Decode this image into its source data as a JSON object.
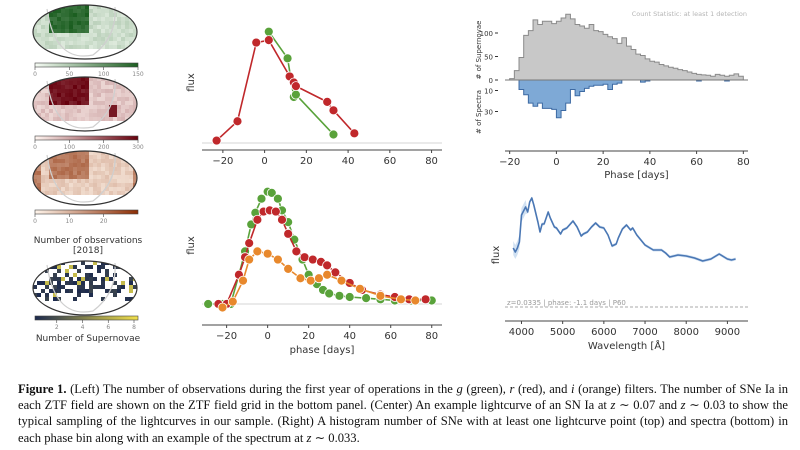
{
  "left_panel": {
    "maps": [
      {
        "name": "g-band",
        "color_min": "#f7fcf5",
        "color_max": "#1b5e20",
        "colorbar_ticks": [
          "0",
          "50",
          "100",
          "150"
        ]
      },
      {
        "name": "r-band",
        "color_min": "#fff5f0",
        "color_max": "#67000d",
        "colorbar_ticks": [
          "0",
          "100",
          "200",
          "300"
        ]
      },
      {
        "name": "i-band",
        "color_min": "#fff5eb",
        "color_max": "#8c2d04",
        "colorbar_ticks": [
          "0",
          "10",
          "20"
        ]
      },
      {
        "name": "supernovae",
        "color_min": "#1c2a4e",
        "color_max": "#f1e04c",
        "colorbar_ticks": [
          "2",
          "4",
          "6",
          "8"
        ]
      }
    ],
    "observations_label": "Number of observations [2018]",
    "supernovae_label": "Number of Supernovae"
  },
  "chart_data": [
    {
      "type": "scatter",
      "title": "",
      "xlabel": "",
      "ylabel": "flux",
      "xlim": [
        -30,
        85
      ],
      "xticks": [
        "−20",
        "0",
        "20",
        "40",
        "60",
        "80"
      ],
      "series": [
        {
          "name": "g",
          "color": "#59a23a",
          "x": [
            2,
            11,
            14,
            15,
            33
          ],
          "y": [
            0.92,
            0.7,
            0.38,
            0.4,
            0.07
          ]
        },
        {
          "name": "r",
          "color": "#c0282b",
          "x": [
            -23,
            -13,
            -4,
            2,
            12,
            14,
            15,
            30,
            33,
            43
          ],
          "y": [
            0.02,
            0.18,
            0.83,
            0.85,
            0.55,
            0.5,
            0.47,
            0.34,
            0.27,
            0.08
          ]
        }
      ]
    },
    {
      "type": "scatter",
      "title": "",
      "xlabel": "phase [days]",
      "ylabel": "flux",
      "xlim": [
        -32,
        85
      ],
      "xticks": [
        "−20",
        "0",
        "20",
        "40",
        "60",
        "80"
      ],
      "series": [
        {
          "name": "g",
          "color": "#59a23a",
          "x": [
            -29,
            -22,
            -18,
            -14,
            -11,
            -8,
            -6,
            -3,
            0,
            2,
            5,
            7,
            10,
            13,
            17,
            20,
            24,
            27,
            30,
            35,
            40,
            48,
            55,
            62,
            70,
            80
          ],
          "y": [
            0.0,
            0.0,
            0.0,
            0.25,
            0.45,
            0.68,
            0.78,
            0.9,
            0.96,
            0.95,
            0.9,
            0.8,
            0.7,
            0.55,
            0.38,
            0.25,
            0.17,
            0.12,
            0.09,
            0.07,
            0.06,
            0.05,
            0.04,
            0.03,
            0.03,
            0.03
          ]
        },
        {
          "name": "r",
          "color": "#c0282b",
          "x": [
            -24,
            -20,
            -14,
            -11,
            -9,
            -5,
            -2,
            1,
            4,
            7,
            10,
            14,
            18,
            22,
            26,
            29,
            33,
            40,
            46,
            55,
            62,
            69,
            77
          ],
          "y": [
            0.0,
            0.0,
            0.25,
            0.4,
            0.52,
            0.72,
            0.79,
            0.8,
            0.79,
            0.72,
            0.6,
            0.45,
            0.4,
            0.38,
            0.36,
            0.33,
            0.27,
            0.18,
            0.12,
            0.08,
            0.06,
            0.04,
            0.04
          ]
        },
        {
          "name": "i",
          "color": "#e8882c",
          "x": [
            -22,
            -17,
            -12,
            -9,
            -5,
            0,
            5,
            10,
            16,
            21,
            25,
            29,
            36,
            45,
            55,
            65,
            72
          ],
          "y": [
            -0.03,
            0.02,
            0.2,
            0.38,
            0.45,
            0.43,
            0.38,
            0.3,
            0.22,
            0.2,
            0.22,
            0.25,
            0.2,
            0.13,
            0.07,
            0.04,
            0.03
          ]
        }
      ]
    },
    {
      "type": "bar",
      "title": "",
      "annotation": "Count Statistic: at least 1 detection",
      "xlabel": "Phase [days]",
      "ylabel_top": "# of Supernovae",
      "ylabel_bottom": "# of Spectra",
      "xlim": [
        -22,
        82
      ],
      "xticks": [
        "−20",
        "0",
        "20",
        "40",
        "60",
        "80"
      ],
      "yticks_top": [
        "0",
        "50",
        "100"
      ],
      "yticks_bottom": [
        "10",
        "30"
      ],
      "bin_width": 2,
      "bin_start": -20,
      "series": [
        {
          "name": "supernovae",
          "color": "#c8c8c8",
          "values": [
            3,
            20,
            48,
            95,
            105,
            128,
            118,
            125,
            125,
            120,
            125,
            132,
            140,
            130,
            118,
            115,
            110,
            118,
            105,
            103,
            97,
            92,
            88,
            78,
            90,
            72,
            65,
            55,
            52,
            45,
            40,
            38,
            33,
            30,
            27,
            25,
            22,
            20,
            17,
            14,
            12,
            11,
            10,
            8,
            12,
            10,
            8,
            10,
            13,
            8
          ]
        },
        {
          "name": "spectra",
          "color": "#7ea9d6",
          "values": [
            0,
            0,
            9,
            14,
            22,
            25,
            22,
            27,
            27,
            28,
            36,
            29,
            22,
            9,
            15,
            11,
            8,
            6,
            5,
            5,
            4,
            9,
            4,
            3,
            0,
            0,
            0,
            0,
            2,
            1,
            0,
            0,
            0,
            0,
            0,
            0,
            0,
            0,
            0,
            0,
            1,
            0,
            0,
            0,
            0,
            0,
            1,
            0,
            0,
            0
          ]
        }
      ]
    },
    {
      "type": "line",
      "title": "",
      "xlabel": "Wavelength [Å]",
      "ylabel": "flux",
      "annotation": "z=0.0335 | phase: -1.1 days | P60",
      "xlim": [
        3600,
        9500
      ],
      "xticks": [
        "4000",
        "5000",
        "6000",
        "7000",
        "8000",
        "9000"
      ],
      "series": [
        {
          "name": "spectrum",
          "color": "#4a77b4",
          "x": [
            3800,
            3850,
            3900,
            3950,
            4000,
            4100,
            4150,
            4200,
            4250,
            4300,
            4400,
            4450,
            4500,
            4550,
            4650,
            4700,
            4800,
            4850,
            4950,
            5000,
            5100,
            5250,
            5350,
            5450,
            5500,
            5600,
            5700,
            5800,
            5900,
            6000,
            6100,
            6200,
            6300,
            6350,
            6450,
            6550,
            6650,
            6700,
            6800,
            6900,
            7000,
            7200,
            7400,
            7500,
            7600,
            7700,
            7800,
            8000,
            8200,
            8400,
            8600,
            8800,
            9000,
            9100,
            9200
          ],
          "y": [
            0.42,
            0.38,
            0.42,
            0.48,
            0.75,
            0.83,
            0.78,
            0.88,
            0.92,
            0.85,
            0.68,
            0.58,
            0.66,
            0.66,
            0.78,
            0.72,
            0.63,
            0.62,
            0.56,
            0.6,
            0.62,
            0.69,
            0.63,
            0.54,
            0.56,
            0.58,
            0.63,
            0.67,
            0.63,
            0.62,
            0.55,
            0.44,
            0.46,
            0.52,
            0.61,
            0.65,
            0.6,
            0.62,
            0.55,
            0.5,
            0.45,
            0.4,
            0.4,
            0.37,
            0.33,
            0.34,
            0.35,
            0.34,
            0.32,
            0.29,
            0.31,
            0.36,
            0.31,
            0.3,
            0.31
          ]
        }
      ]
    }
  ],
  "caption": {
    "label": "Figure 1.",
    "text_parts": [
      " (Left) The number of observations during the first year of operations in the ",
      "g",
      " (green), ",
      "r",
      " (red), and ",
      "i",
      " (orange) filters. The number of SNe Ia in each ZTF field are shown on the ZTF field grid in the bottom panel. (Center) An example lightcurve of an SN Ia at ",
      "z",
      " ∼ 0.07 and ",
      "z",
      " ∼ 0.03 to show the typical sampling of the lightcurves in our sample. (Right) A histogram number of SNe with at least one lightcurve point (top) and spectra (bottom) in each phase bin along with an example of the spectrum at ",
      "z",
      " ∼ 0.033."
    ]
  }
}
